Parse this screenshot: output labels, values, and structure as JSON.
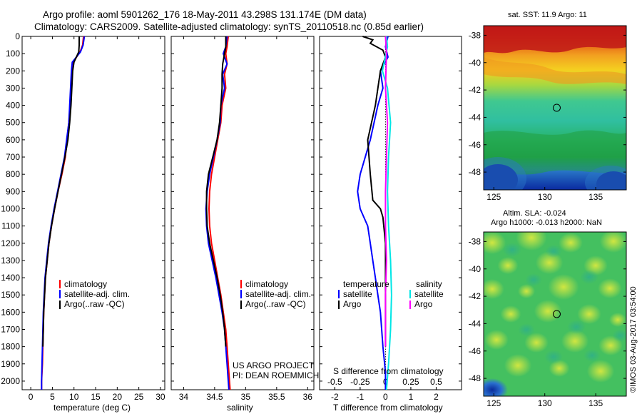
{
  "header": {
    "title_line1": "Argo profile: aoml 5901262_176 18-May-2011 43.298S 131.174E (DM data)",
    "title_line2": "Climatology: CARS2009. Satellite-adjusted climatology: synTS_20110518.nc (0.85d earlier)"
  },
  "footer": {
    "timestamp": "©IMOS 03-Aug-2017 03:54:00"
  },
  "colors": {
    "climatology": "#ff0000",
    "satellite": "#0000ff",
    "argo": "#000000",
    "salinity_satellite": "#00e6e6",
    "salinity_argo": "#ff00ff"
  },
  "chart_data": [
    {
      "type": "line",
      "id": "temperature",
      "xlabel": "temperature (deg C)",
      "ylabel": "",
      "xlim": [
        -2,
        31
      ],
      "ylim": [
        2050,
        0
      ],
      "xticks": [
        0,
        5,
        10,
        15,
        20,
        25,
        30
      ],
      "yticks": [
        0,
        100,
        200,
        300,
        400,
        500,
        600,
        700,
        800,
        900,
        1000,
        1100,
        1200,
        1300,
        1400,
        1500,
        1600,
        1700,
        1800,
        1900,
        2000
      ],
      "legend": [
        "climatology",
        "satellite-adj. clim.",
        "Argo(..raw -QC)"
      ],
      "legend_position": "lower-middle",
      "series": [
        {
          "name": "climatology",
          "color": "#ff0000",
          "x": [
            12.2,
            12.0,
            11.4,
            9.8,
            9.5,
            9.3,
            9.1,
            8.8,
            8.4,
            8.0,
            7.2,
            6.3,
            5.5,
            4.8,
            4.2,
            3.8,
            3.4,
            3.2,
            3.0,
            2.9,
            2.8,
            2.7,
            2.6,
            2.5,
            2.5,
            2.5
          ],
          "y": [
            0,
            50,
            90,
            150,
            200,
            300,
            400,
            500,
            600,
            700,
            800,
            900,
            1000,
            1100,
            1200,
            1300,
            1400,
            1500,
            1600,
            1700,
            1800,
            1900,
            1950,
            2000,
            2030,
            2050
          ]
        },
        {
          "name": "satellite-adj. clim.",
          "color": "#0000ff",
          "x": [
            12.4,
            12.1,
            11.5,
            9.6,
            9.4,
            9.2,
            9.0,
            8.8,
            8.3,
            7.8,
            7.0,
            6.2,
            5.4,
            4.7,
            4.1,
            3.7,
            3.3,
            3.1,
            2.9,
            2.8,
            2.7,
            2.6,
            2.5,
            2.5
          ],
          "y": [
            0,
            50,
            90,
            150,
            200,
            300,
            400,
            500,
            600,
            700,
            800,
            900,
            1000,
            1100,
            1200,
            1300,
            1400,
            1500,
            1600,
            1700,
            1800,
            1900,
            2000,
            2050
          ]
        },
        {
          "name": "Argo(..raw -QC)",
          "color": "#000000",
          "x": [
            11.2,
            11.2,
            11.1,
            10.0,
            9.7,
            9.5,
            9.3,
            9.0,
            8.6,
            7.9,
            7.1,
            6.3,
            5.5,
            4.8,
            4.2,
            3.8,
            3.4,
            3.2,
            3.0,
            2.9,
            2.8
          ],
          "y": [
            0,
            50,
            90,
            150,
            200,
            300,
            400,
            500,
            600,
            700,
            800,
            900,
            1000,
            1100,
            1200,
            1300,
            1400,
            1500,
            1600,
            1700,
            1800
          ]
        }
      ]
    },
    {
      "type": "line",
      "id": "salinity",
      "xlabel": "salinity",
      "xlim": [
        33.8,
        36.1
      ],
      "ylim": [
        2050,
        0
      ],
      "xticks": [
        34,
        34.5,
        35,
        35.5,
        36
      ],
      "legend": [
        "climatology",
        "satellite-adj. clim.",
        "Argo(..raw -QC)"
      ],
      "legend_position": "lower-right",
      "annotation_line1": "US ARGO PROJECT",
      "annotation_line2": "PI: DEAN ROEMMICH",
      "series": [
        {
          "name": "climatology",
          "color": "#ff0000",
          "x": [
            34.72,
            34.7,
            34.68,
            34.7,
            34.66,
            34.68,
            34.62,
            34.6,
            34.55,
            34.5,
            34.45,
            34.42,
            34.41,
            34.42,
            34.45,
            34.5,
            34.55,
            34.6,
            34.64,
            34.68,
            34.7,
            34.72,
            34.74,
            34.75
          ],
          "y": [
            0,
            60,
            100,
            160,
            220,
            300,
            400,
            500,
            600,
            700,
            800,
            900,
            1000,
            1100,
            1200,
            1300,
            1400,
            1500,
            1600,
            1700,
            1800,
            1900,
            2000,
            2050
          ]
        },
        {
          "name": "satellite-adj. clim.",
          "color": "#0000ff",
          "x": [
            34.7,
            34.68,
            34.64,
            34.7,
            34.63,
            34.66,
            34.6,
            34.59,
            34.54,
            34.48,
            34.42,
            34.38,
            34.36,
            34.37,
            34.4,
            34.46,
            34.52,
            34.57,
            34.62,
            34.66,
            34.68,
            34.7,
            34.72,
            34.73
          ],
          "y": [
            0,
            60,
            100,
            160,
            220,
            300,
            400,
            500,
            600,
            700,
            800,
            900,
            1000,
            1100,
            1200,
            1300,
            1400,
            1500,
            1600,
            1700,
            1800,
            1900,
            2000,
            2050
          ]
        },
        {
          "name": "Argo(..raw -QC)",
          "color": "#000000",
          "x": [
            34.68,
            34.68,
            34.66,
            34.63,
            34.62,
            34.62,
            34.6,
            34.58,
            34.54,
            34.47,
            34.4,
            34.37,
            34.37,
            34.38,
            34.42,
            34.48,
            34.54,
            34.59,
            34.63,
            34.66,
            34.68
          ],
          "y": [
            0,
            60,
            100,
            160,
            220,
            300,
            400,
            500,
            600,
            700,
            800,
            900,
            1000,
            1100,
            1200,
            1300,
            1400,
            1500,
            1600,
            1700,
            1800
          ]
        }
      ]
    },
    {
      "type": "line",
      "id": "differences",
      "xlabel": "T difference from climatology",
      "xlabel_top": "S difference from climatology",
      "xlim_T": [
        -2.6,
        3.0
      ],
      "xticks_T": [
        -2,
        -1,
        0,
        1,
        2
      ],
      "xticks_S": [
        -0.5,
        -0.25,
        0,
        0.25,
        0.5
      ],
      "xticks_S_labels": [
        "-0.5",
        "-0.25",
        "0",
        "0.25",
        "0.5"
      ],
      "ylim": [
        2050,
        0
      ],
      "legend_temperature_title": "temperature",
      "legend_salinity_title": "salinity",
      "legend_satellite": "satellite",
      "legend_argo": "Argo",
      "series": [
        {
          "name": "satellite",
          "group": "temperature",
          "color": "#0000ff",
          "x": [
            0.1,
            0.0,
            0.1,
            -0.2,
            -0.1,
            -0.3,
            -0.6,
            -1.0,
            -1.1,
            -1.0,
            -0.7,
            -0.6,
            -0.5,
            -0.4,
            -0.3,
            -0.2,
            -0.1,
            0.0,
            0.0
          ],
          "y": [
            0,
            60,
            120,
            200,
            300,
            400,
            600,
            800,
            900,
            1000,
            1100,
            1200,
            1300,
            1400,
            1500,
            1600,
            1800,
            1950,
            2050
          ]
        },
        {
          "name": "Argo",
          "group": "temperature",
          "color": "#000000",
          "x": [
            -0.9,
            -0.5,
            -0.6,
            -0.1,
            0.0,
            -0.2,
            -0.4,
            -0.7,
            -0.6,
            -0.5,
            -0.2,
            -0.1,
            0.0,
            0.0,
            0.0
          ],
          "y": [
            0,
            20,
            40,
            80,
            120,
            200,
            400,
            600,
            800,
            950,
            1000,
            1050,
            1200,
            1500,
            1800
          ]
        },
        {
          "name": "satellite",
          "group": "salinity",
          "color": "#00e6e6",
          "x": [
            0.01,
            0.02,
            -0.03,
            0.02,
            0.05,
            0.03,
            0.02,
            0.03,
            0.05,
            0.06,
            0.05,
            0.03,
            0.01
          ],
          "y": [
            0,
            60,
            200,
            300,
            500,
            700,
            900,
            1100,
            1300,
            1500,
            1700,
            1900,
            2050
          ]
        },
        {
          "name": "Argo",
          "group": "salinity",
          "color": "#ff00ff",
          "x": [
            0.0,
            0.01,
            0.0,
            0.02,
            0.01,
            0.0,
            0.0,
            0.01,
            0.0,
            0.0
          ],
          "y": [
            0,
            100,
            300,
            500,
            700,
            900,
            1100,
            1300,
            1500,
            1800
          ]
        }
      ]
    },
    {
      "type": "heatmap",
      "id": "sst_map",
      "title": "sat. SST: 11.9 Argo: 11",
      "xlim": [
        124,
        138
      ],
      "ylim": [
        -49.3,
        -37.3
      ],
      "xticks": [
        125,
        130,
        135
      ],
      "yticks": [
        -38,
        -40,
        -42,
        -44,
        -46,
        -48
      ],
      "float_marker": {
        "lon": 131.174,
        "lat": -43.298
      }
    },
    {
      "type": "heatmap",
      "id": "sla_map",
      "title_line1": "Altim. SLA: -0.024",
      "title_line2": "Argo h1000: -0.013 h2000: NaN",
      "xlim": [
        124,
        138
      ],
      "ylim": [
        -49.3,
        -37.3
      ],
      "xticks": [
        125,
        130,
        135
      ],
      "yticks": [
        -38,
        -40,
        -42,
        -44,
        -46,
        -48
      ],
      "float_marker": {
        "lon": 131.174,
        "lat": -43.298
      }
    }
  ]
}
